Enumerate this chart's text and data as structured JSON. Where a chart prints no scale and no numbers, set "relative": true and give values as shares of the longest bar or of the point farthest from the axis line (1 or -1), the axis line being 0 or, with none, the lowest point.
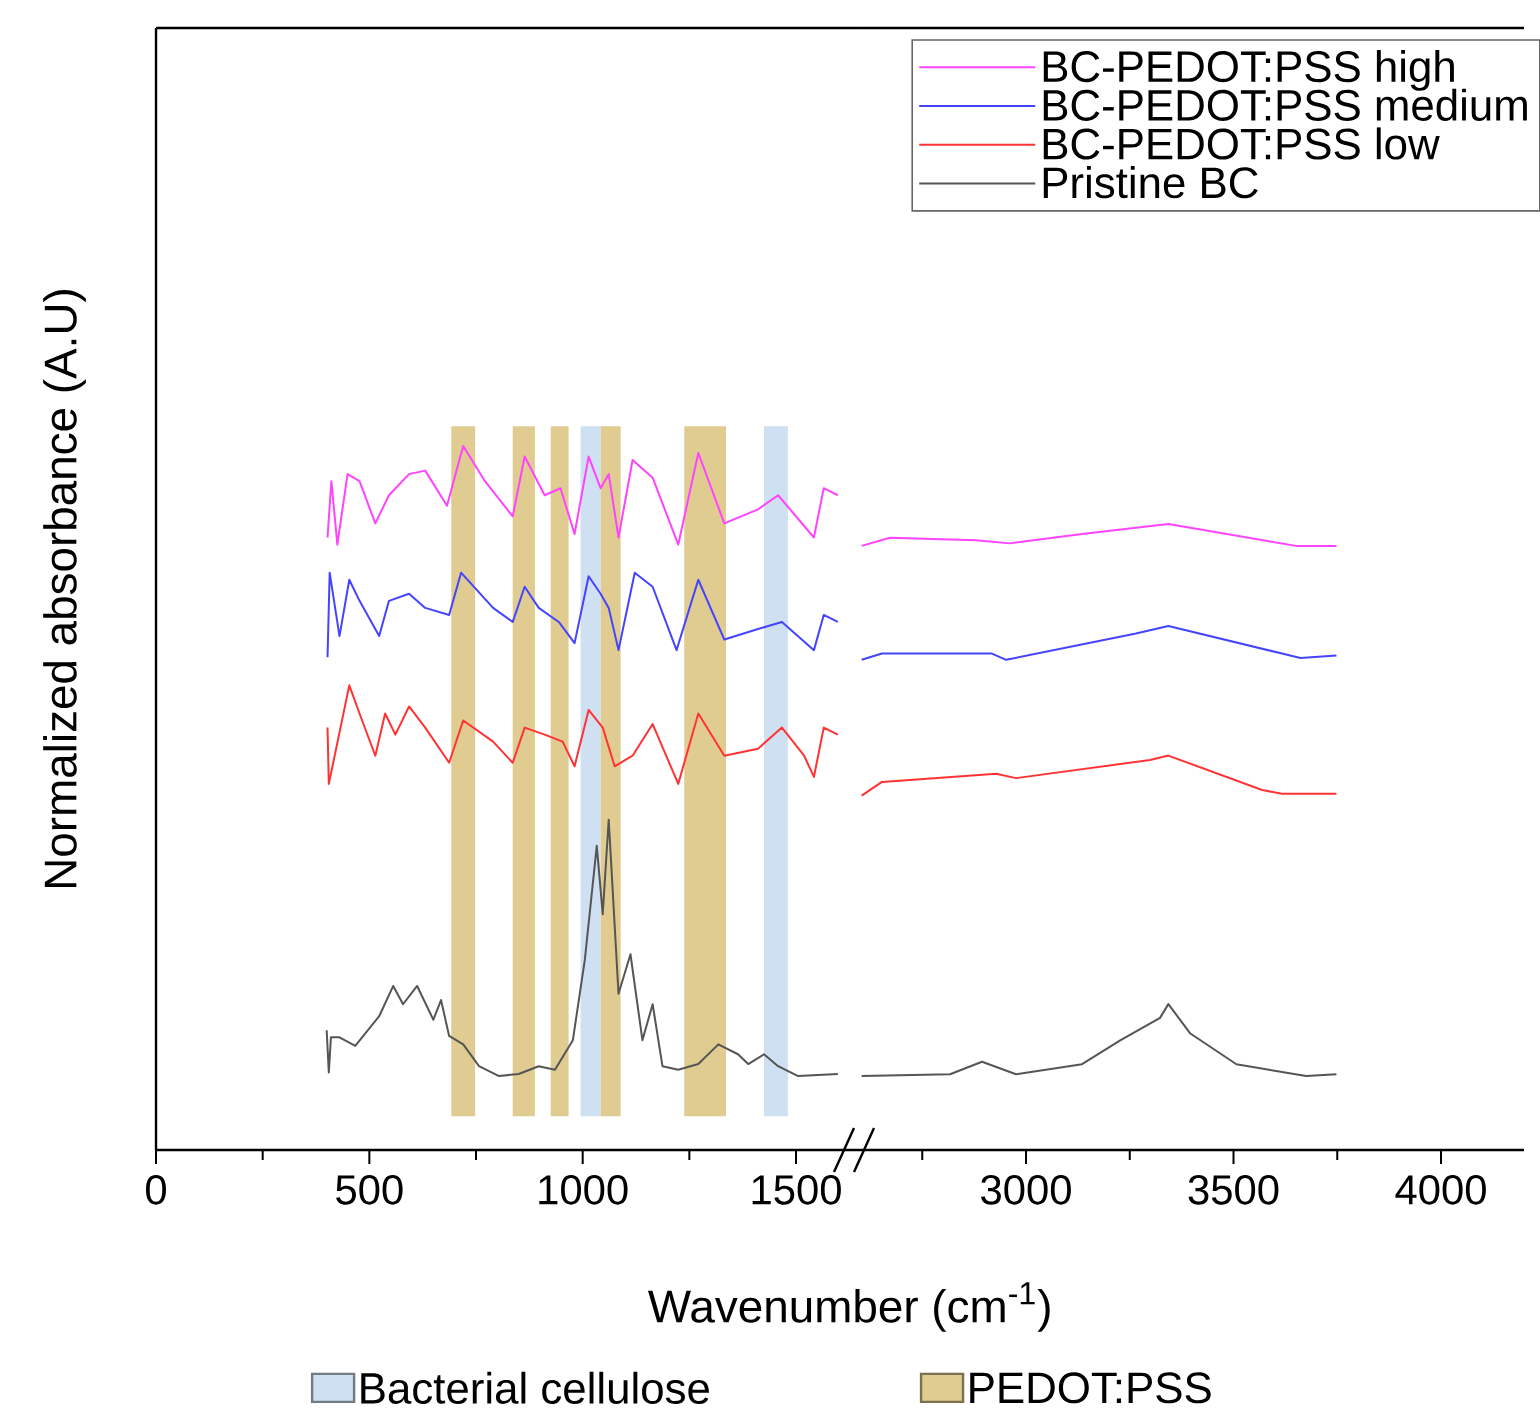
{
  "chart_data": [
    {
      "type": "line",
      "ylabel": "Normalized absorbance (A.U)",
      "xlabel": "Wavenumber (cm$^{-1}$)",
      "xlim": [
        0,
        1650
      ],
      "xticks": [
        0,
        500,
        1000,
        1500
      ],
      "relative": true,
      "legend": "bottom",
      "bands": [
        {
          "axis": "x",
          "from": 692,
          "to": 748,
          "color": "#e0cc90",
          "label": "PEDOT:PSS"
        },
        {
          "axis": "x",
          "from": 836,
          "to": 888,
          "color": "#e0cc90"
        },
        {
          "axis": "x",
          "from": 925,
          "to": 967,
          "color": "#e0cc90"
        },
        {
          "axis": "x",
          "from": 995,
          "to": 1042,
          "color": "#cfe0f2",
          "label": "Bacterial cellulose"
        },
        {
          "axis": "x",
          "from": 1042,
          "to": 1089,
          "color": "#e0cc90"
        },
        {
          "axis": "x",
          "from": 1238,
          "to": 1336,
          "color": "#e0cc90"
        },
        {
          "axis": "x",
          "from": 1425,
          "to": 1481,
          "color": "#cfe0f2"
        }
      ],
      "series": [
        {
          "color": "#ff44ff",
          "x": [
            402,
            411,
            425,
            449,
            477,
            514,
            546,
            593,
            631,
            682,
            720,
            771,
            836,
            864,
            911,
            948,
            981,
            1014,
            1042,
            1061,
            1084,
            1117,
            1164,
            1224,
            1271,
            1332,
            1411,
            1458,
            1542,
            1565,
            1598
          ],
          "values": [
            0.87,
            0.95,
            0.86,
            0.96,
            0.95,
            0.89,
            0.93,
            0.96,
            0.965,
            0.915,
            1.0,
            0.95,
            0.9,
            0.985,
            0.93,
            0.94,
            0.875,
            0.985,
            0.94,
            0.96,
            0.87,
            0.98,
            0.955,
            0.86,
            0.99,
            0.89,
            0.91,
            0.93,
            0.87,
            0.94,
            0.93
          ]
        },
        {
          "color": "#4444ff",
          "x": [
            402,
            407,
            430,
            453,
            477,
            523,
            546,
            593,
            631,
            687,
            715,
            790,
            836,
            864,
            897,
            944,
            981,
            1014,
            1042,
            1061,
            1084,
            1122,
            1164,
            1220,
            1271,
            1332,
            1411,
            1467,
            1542,
            1565,
            1598
          ],
          "values": [
            0.7,
            0.82,
            0.73,
            0.81,
            0.78,
            0.73,
            0.78,
            0.79,
            0.77,
            0.76,
            0.82,
            0.77,
            0.75,
            0.8,
            0.77,
            0.75,
            0.72,
            0.815,
            0.79,
            0.77,
            0.71,
            0.82,
            0.8,
            0.71,
            0.81,
            0.725,
            0.74,
            0.75,
            0.71,
            0.76,
            0.75
          ]
        },
        {
          "color": "#ff3333",
          "x": [
            402,
            405,
            453,
            477,
            514,
            537,
            561,
            593,
            631,
            687,
            720,
            790,
            836,
            864,
            911,
            953,
            981,
            1014,
            1047,
            1075,
            1117,
            1164,
            1224,
            1271,
            1332,
            1411,
            1467,
            1519,
            1542,
            1565,
            1598
          ],
          "values": [
            0.6,
            0.52,
            0.66,
            0.62,
            0.56,
            0.62,
            0.59,
            0.63,
            0.6,
            0.55,
            0.61,
            0.58,
            0.55,
            0.6,
            0.59,
            0.58,
            0.545,
            0.625,
            0.6,
            0.545,
            0.56,
            0.605,
            0.52,
            0.62,
            0.56,
            0.57,
            0.6,
            0.56,
            0.53,
            0.6,
            0.59
          ]
        },
        {
          "color": "#555555",
          "x": [
            400,
            405,
            410,
            430,
            467,
            523,
            556,
            579,
            612,
            650,
            668,
            687,
            720,
            757,
            804,
            850,
            897,
            935,
            977,
            1005,
            1033,
            1047,
            1061,
            1084,
            1112,
            1140,
            1164,
            1187,
            1224,
            1271,
            1318,
            1364,
            1388,
            1425,
            1458,
            1505,
            1598
          ],
          "values": [
            0.17,
            0.11,
            0.16,
            0.16,
            0.148,
            0.19,
            0.233,
            0.207,
            0.233,
            0.185,
            0.213,
            0.162,
            0.15,
            0.119,
            0.105,
            0.108,
            0.119,
            0.114,
            0.156,
            0.27,
            0.432,
            0.335,
            0.469,
            0.222,
            0.278,
            0.156,
            0.207,
            0.119,
            0.114,
            0.122,
            0.15,
            0.136,
            0.122,
            0.136,
            0.119,
            0.105,
            0.108
          ]
        }
      ]
    },
    {
      "type": "line",
      "xlim": [
        2600,
        4200
      ],
      "xticks": [
        3000,
        3500,
        4000
      ],
      "relative": true,
      "legend": "top right",
      "series": [
        {
          "name": "BC-PEDOT:PSS high",
          "color": "#ff44ff",
          "x": [
            2604,
            2672,
            2879,
            2961,
            3135,
            3343,
            3651,
            3748
          ],
          "values": [
            0.965,
            0.978,
            0.974,
            0.969,
            0.984,
            1.0,
            0.965,
            0.965
          ]
        },
        {
          "name": "BC-PEDOT:PSS medium",
          "color": "#4444ff",
          "x": [
            2604,
            2653,
            2918,
            2952,
            3265,
            3343,
            3617,
            3661,
            3748
          ],
          "values": [
            0.783,
            0.793,
            0.793,
            0.783,
            0.825,
            0.837,
            0.793,
            0.786,
            0.79
          ]
        },
        {
          "name": "BC-PEDOT:PSS low",
          "color": "#ff3333",
          "x": [
            2604,
            2653,
            2928,
            2976,
            3299,
            3343,
            3569,
            3617,
            3748
          ],
          "values": [
            0.566,
            0.588,
            0.601,
            0.594,
            0.623,
            0.63,
            0.575,
            0.569,
            0.569
          ]
        },
        {
          "name": "Pristine BC",
          "color": "#555555",
          "x": [
            2604,
            2817,
            2894,
            2976,
            3135,
            3227,
            3323,
            3343,
            3396,
            3507,
            3675,
            3748
          ],
          "values": [
            0.118,
            0.121,
            0.141,
            0.121,
            0.137,
            0.175,
            0.211,
            0.233,
            0.186,
            0.137,
            0.118,
            0.121
          ]
        }
      ]
    }
  ]
}
